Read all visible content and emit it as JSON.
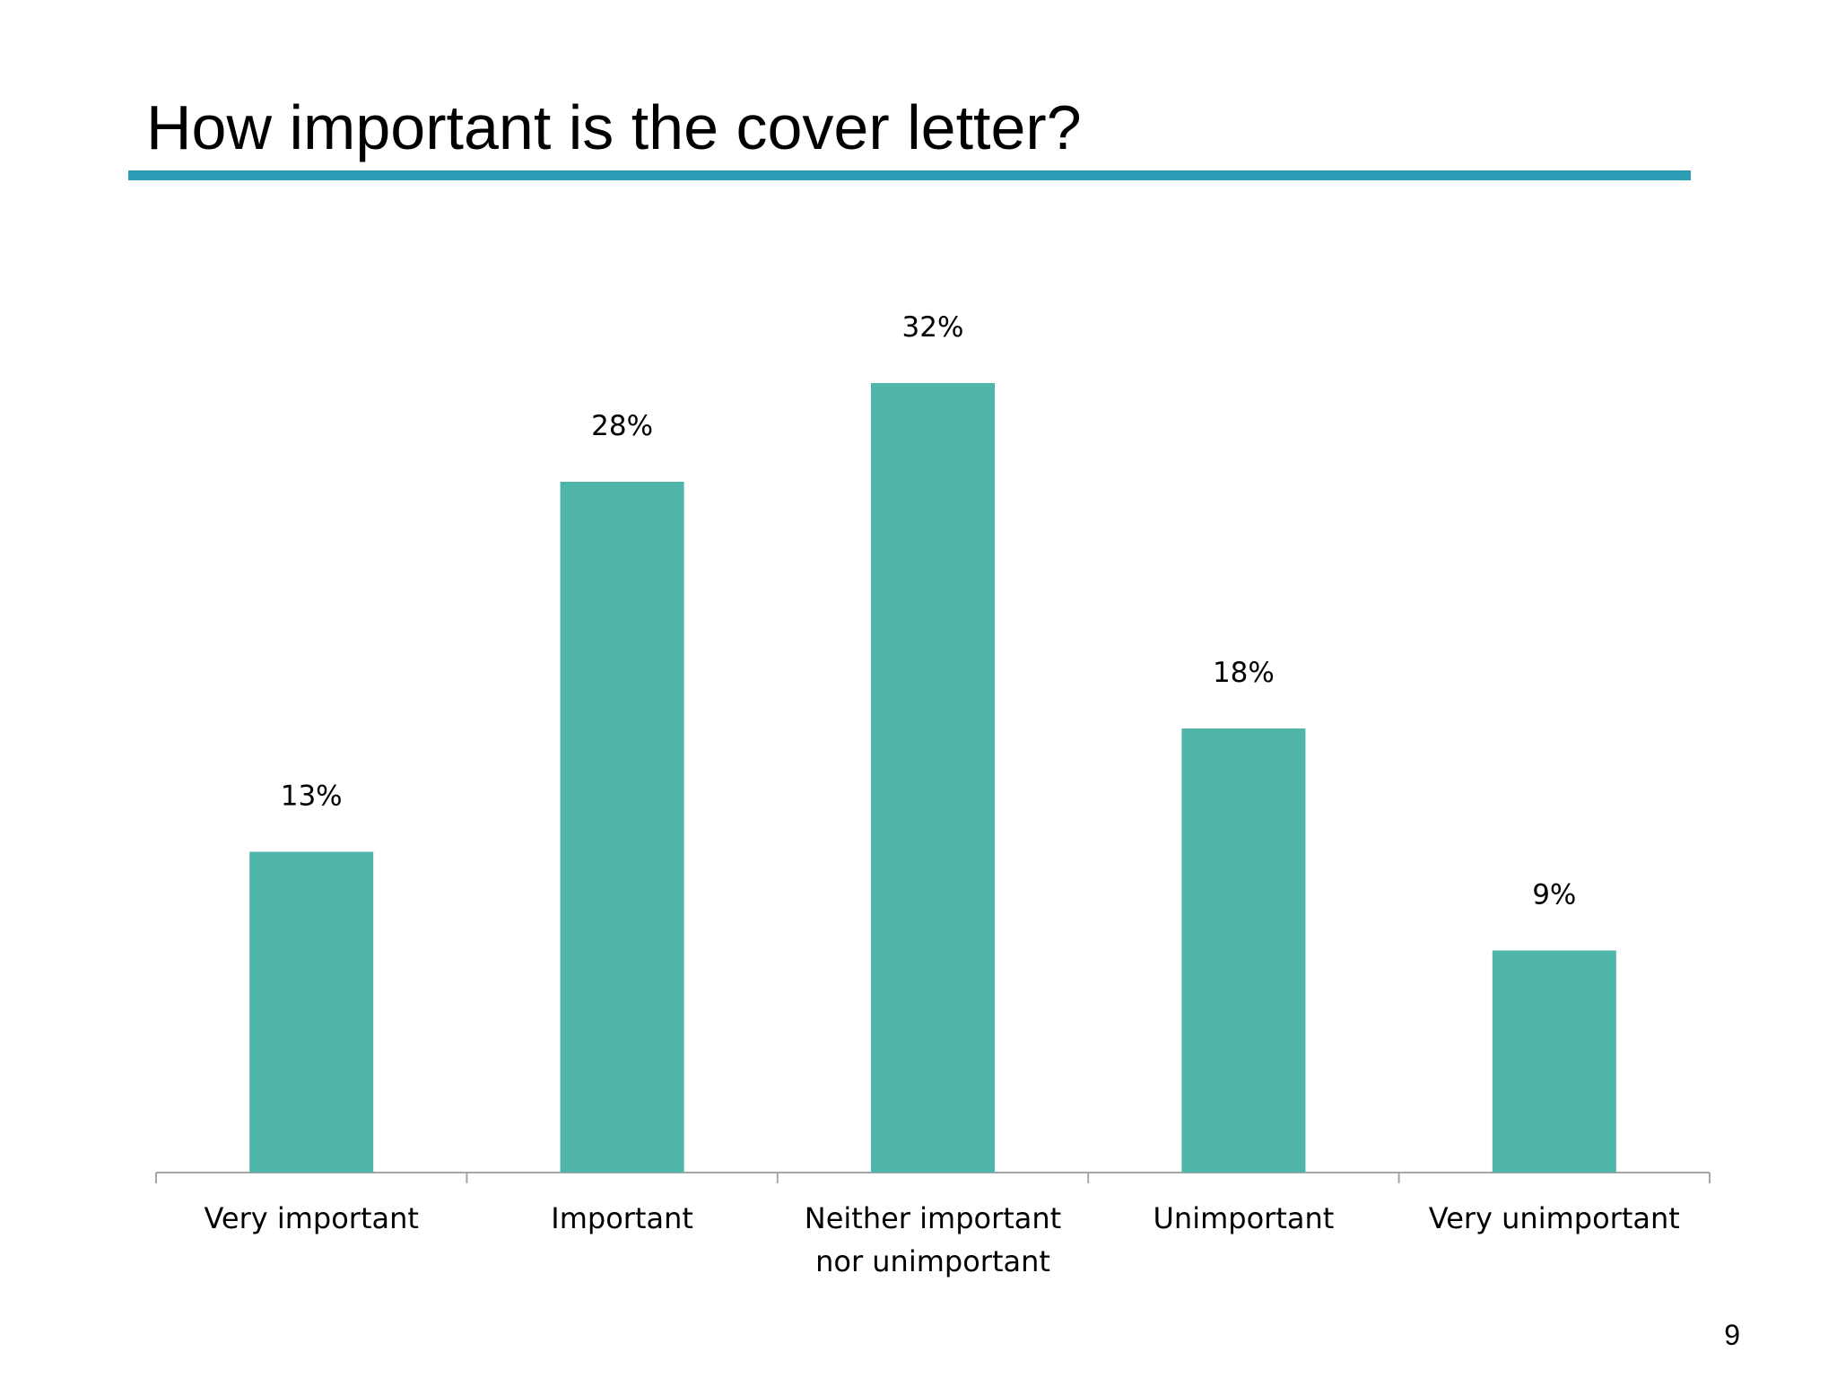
{
  "slide": {
    "title": "How important is the cover letter?",
    "page_number": "9",
    "accent_color": "#2a9db5",
    "bar_color": "#4fb5a9"
  },
  "chart_data": {
    "type": "bar",
    "categories": [
      [
        "Very important"
      ],
      [
        "Important"
      ],
      [
        "Neither important",
        "nor unimportant"
      ],
      [
        "Unimportant"
      ],
      [
        "Very unimportant"
      ]
    ],
    "values": [
      13,
      28,
      32,
      18,
      9
    ],
    "data_labels": [
      "13%",
      "28%",
      "32%",
      "18%",
      "9%"
    ],
    "unit": "%",
    "ylim": [
      0,
      35
    ],
    "grid": false,
    "legend": "none"
  }
}
